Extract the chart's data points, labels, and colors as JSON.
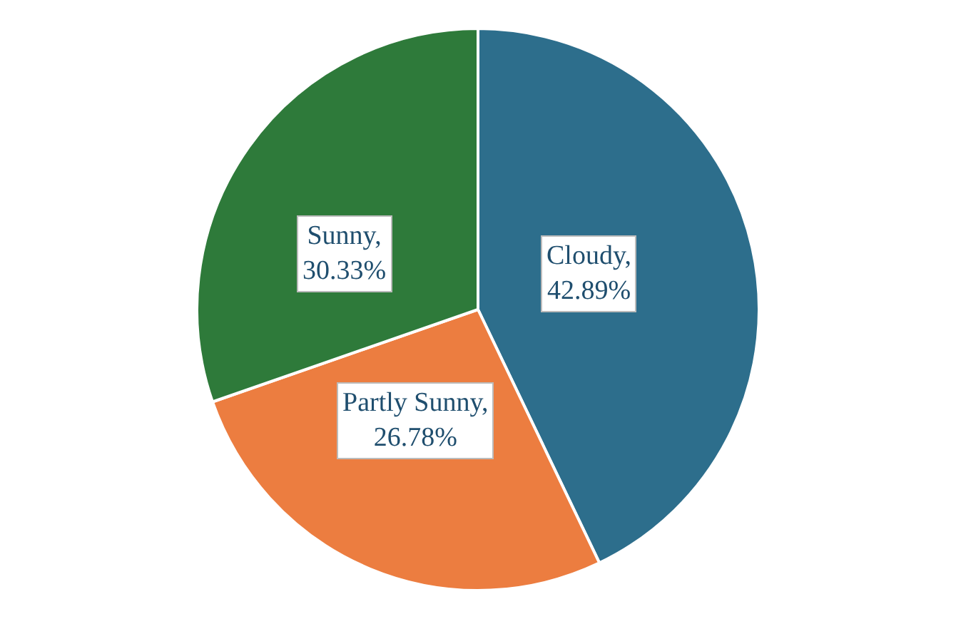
{
  "chart_data": {
    "type": "pie",
    "categories": [
      "Cloudy",
      "Partly Sunny",
      "Sunny"
    ],
    "values": [
      42.89,
      26.78,
      30.33
    ],
    "colors": [
      "#2d6e8c",
      "#ec7d40",
      "#2e7a3a"
    ],
    "value_labels": [
      ",\n42.89%",
      ",\n26.78%",
      ",\n30.33%"
    ],
    "legend": false
  }
}
